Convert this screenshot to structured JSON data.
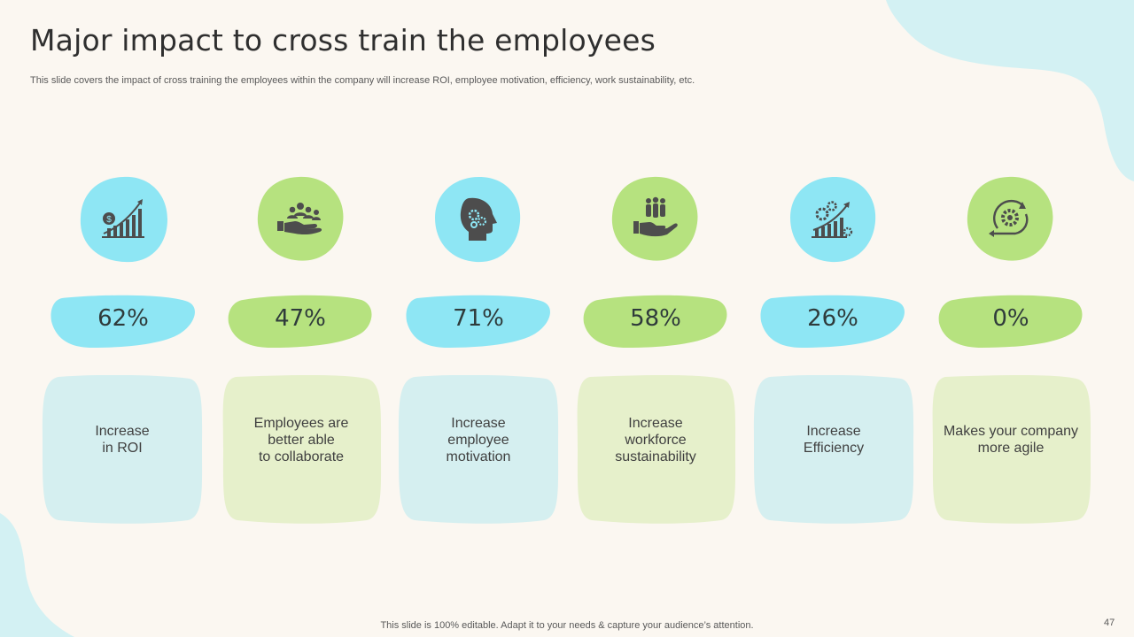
{
  "title": "Major impact to cross train the employees",
  "subtitle": "This slide covers the impact of cross training the employees within the company will increase ROI, employee motivation, efficiency,  work sustainability, etc.",
  "colors": {
    "blue": "#8ee6f4",
    "green": "#b6e27f",
    "card_blue": "#d5eff0",
    "card_green": "#e6f0cb",
    "background": "#fbf7f1",
    "icon": "#4d4d4d"
  },
  "items": [
    {
      "percent": "62%",
      "label": "Increase\nin ROI",
      "icon": "dollar-growth-chart-icon",
      "color": "blue"
    },
    {
      "percent": "47%",
      "label": "Employees are\nbetter able\nto collaborate",
      "icon": "hand-team-icon",
      "color": "green"
    },
    {
      "percent": "71%",
      "label": "Increase\nemployee\nmotivation",
      "icon": "head-gears-icon",
      "color": "blue"
    },
    {
      "percent": "58%",
      "label": "Increase\nworkforce\nsustainability",
      "icon": "hand-people-icon",
      "color": "green"
    },
    {
      "percent": "26%",
      "label": "Increase\nEfficiency",
      "icon": "gears-growth-icon",
      "color": "blue"
    },
    {
      "percent": "0%",
      "label": "Makes your company\nmore agile",
      "icon": "agile-gear-cycle-icon",
      "color": "green"
    }
  ],
  "footer": "This slide is 100% editable. Adapt it to your needs & capture your audience’s attention.",
  "page_number": "47"
}
